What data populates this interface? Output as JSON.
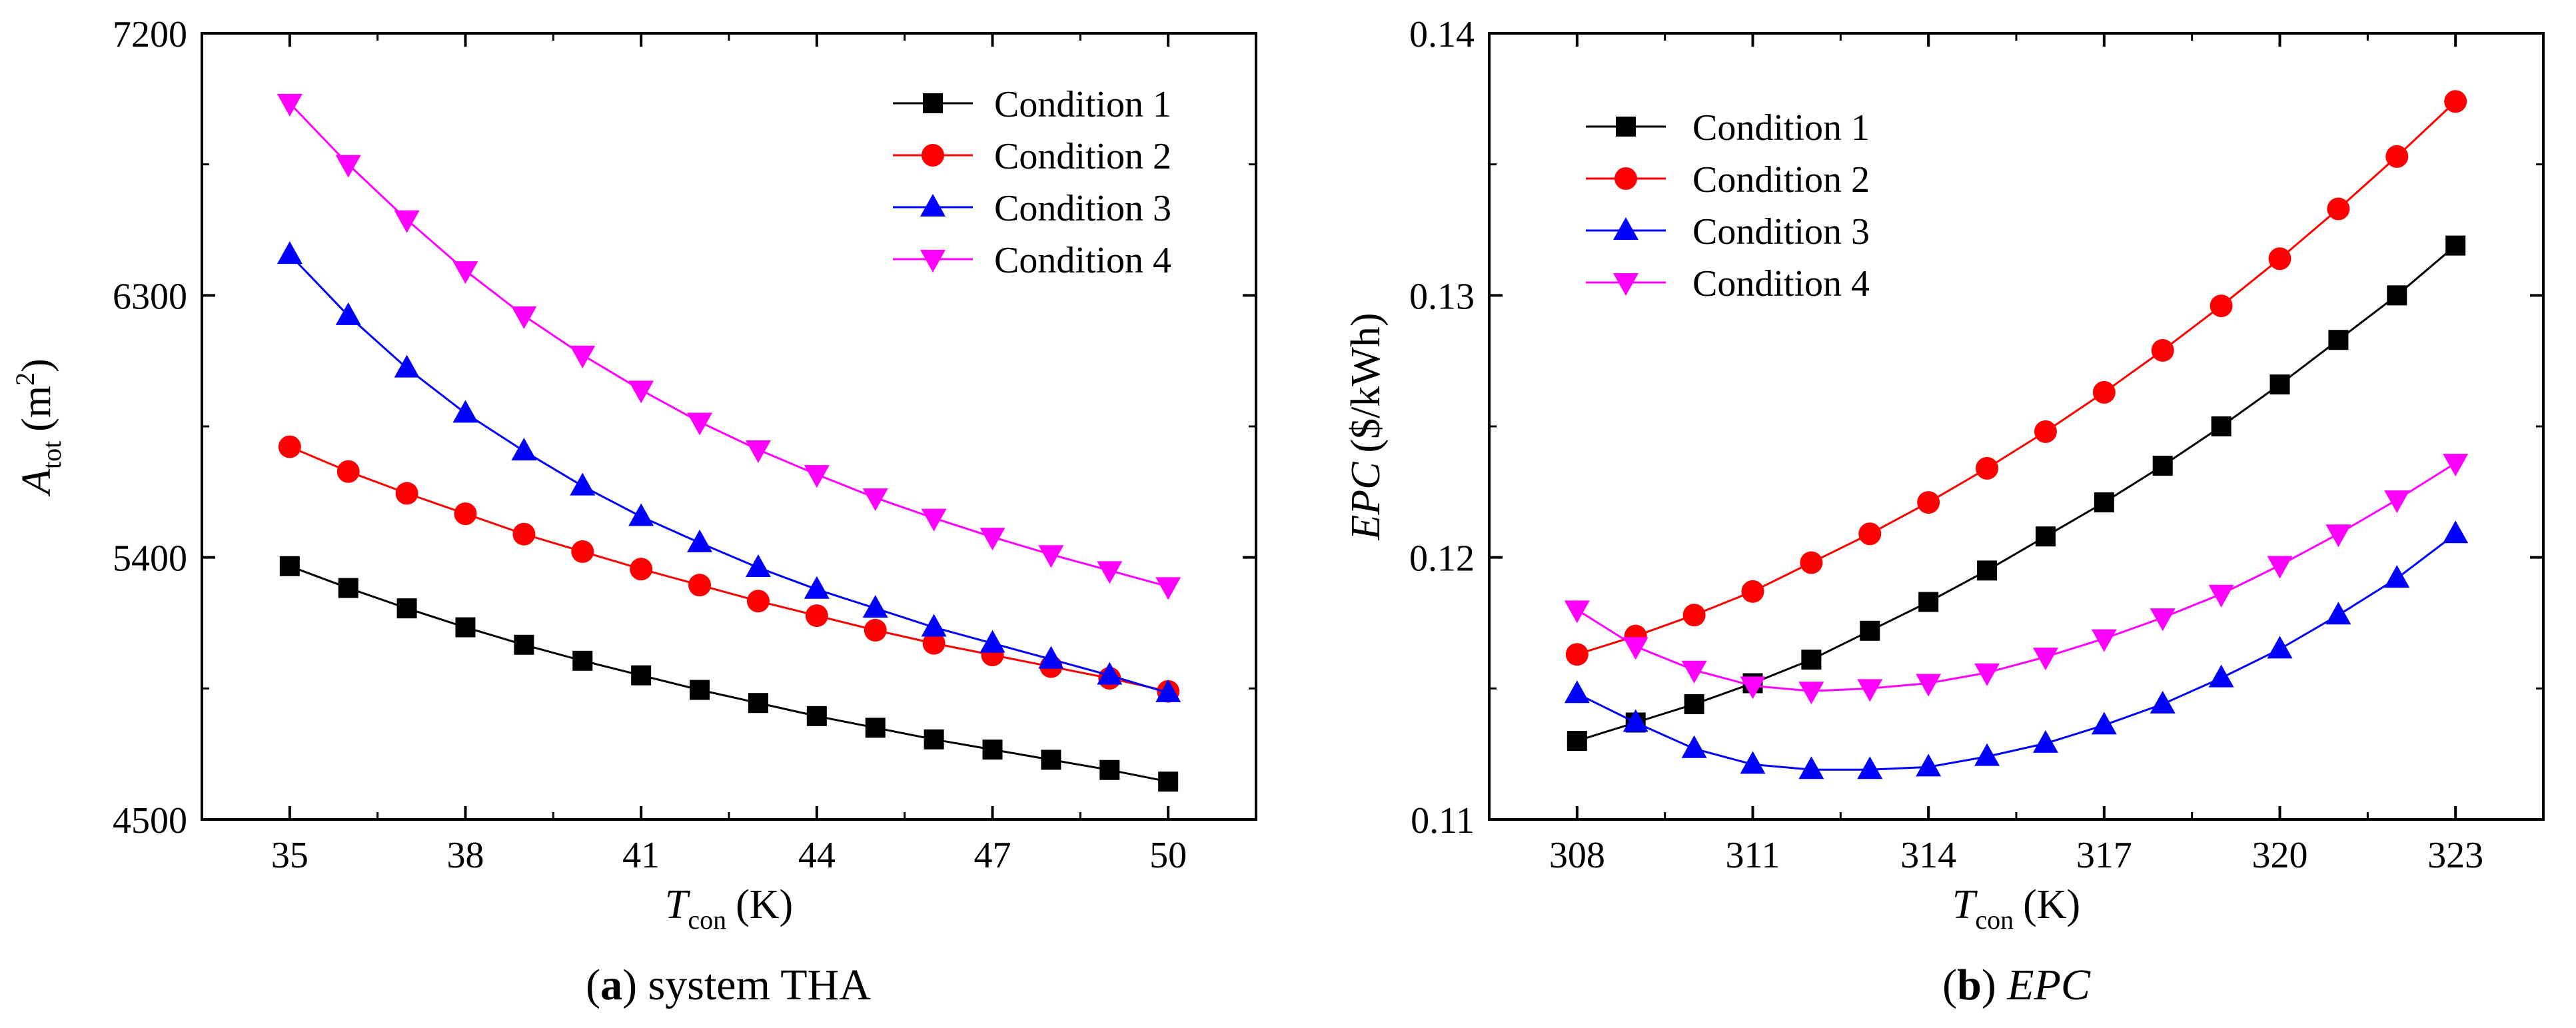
{
  "chart_data": [
    {
      "type": "line",
      "caption": {
        "letter": "a",
        "text": "system THA"
      },
      "title": "",
      "xlabel": {
        "main": "T",
        "sub": "con",
        "unit": "(K)"
      },
      "ylabel": {
        "main": "A",
        "sub": "tot",
        "unit": "(m",
        "sup": "2",
        "unit_end": ")"
      },
      "xlim": [
        33.5,
        51.5
      ],
      "ylim": [
        4500,
        7200
      ],
      "xticks": [
        35,
        38,
        41,
        44,
        47,
        50
      ],
      "yticks": [
        4500,
        5400,
        6300,
        7200
      ],
      "x": [
        35,
        36,
        37,
        38,
        39,
        40,
        41,
        42,
        43,
        44,
        45,
        46,
        47,
        48,
        49,
        50
      ],
      "legend_position": "top-right",
      "series": [
        {
          "name": "Condition 1",
          "color": "#000000",
          "marker": "square",
          "values": [
            5370,
            5295,
            5225,
            5160,
            5100,
            5045,
            4995,
            4945,
            4900,
            4855,
            4815,
            4775,
            4740,
            4705,
            4670,
            4630
          ]
        },
        {
          "name": "Condition 2",
          "color": "#ff0000",
          "marker": "circle",
          "values": [
            5780,
            5695,
            5620,
            5550,
            5480,
            5420,
            5360,
            5305,
            5250,
            5200,
            5150,
            5105,
            5065,
            5025,
            4985,
            4940
          ]
        },
        {
          "name": "Condition 3",
          "color": "#0000ff",
          "marker": "triangle-up",
          "values": [
            6440,
            6230,
            6050,
            5895,
            5765,
            5645,
            5540,
            5450,
            5365,
            5290,
            5225,
            5160,
            5105,
            5050,
            4995,
            4935
          ]
        },
        {
          "name": "Condition 4",
          "color": "#ff00ff",
          "marker": "triangle-down",
          "values": [
            6960,
            6750,
            6560,
            6385,
            6230,
            6095,
            5975,
            5865,
            5770,
            5685,
            5605,
            5535,
            5470,
            5410,
            5355,
            5300
          ]
        }
      ]
    },
    {
      "type": "line",
      "caption": {
        "letter": "b",
        "text": "EPC"
      },
      "title": "",
      "xlabel": {
        "main": "T",
        "sub": "con",
        "unit": "(K)"
      },
      "ylabel": {
        "main": "EPC",
        "sub": "",
        "unit": "($/kWh)",
        "sup": "",
        "unit_end": ""
      },
      "xlim": [
        306.5,
        324.5
      ],
      "ylim": [
        0.11,
        0.14
      ],
      "xticks": [
        308,
        311,
        314,
        317,
        320,
        323
      ],
      "yticks": [
        0.11,
        0.12,
        0.13,
        0.14
      ],
      "x": [
        308,
        309,
        310,
        311,
        312,
        313,
        314,
        315,
        316,
        317,
        318,
        319,
        320,
        321,
        322,
        323
      ],
      "legend_position": "top-left",
      "series": [
        {
          "name": "Condition 1",
          "color": "#000000",
          "marker": "square",
          "values": [
            0.113,
            0.1137,
            0.1144,
            0.1152,
            0.1161,
            0.1172,
            0.1183,
            0.1195,
            0.1208,
            0.1221,
            0.1235,
            0.125,
            0.1266,
            0.1283,
            0.13,
            0.1319
          ]
        },
        {
          "name": "Condition 2",
          "color": "#ff0000",
          "marker": "circle",
          "values": [
            0.1163,
            0.117,
            0.1178,
            0.1187,
            0.1198,
            0.1209,
            0.1221,
            0.1234,
            0.1248,
            0.1263,
            0.1279,
            0.1296,
            0.1314,
            0.1333,
            0.1353,
            0.1374
          ]
        },
        {
          "name": "Condition 3",
          "color": "#0000ff",
          "marker": "triangle-up",
          "values": [
            0.1148,
            0.1137,
            0.1127,
            0.1121,
            0.1119,
            0.1119,
            0.112,
            0.1124,
            0.1129,
            0.1136,
            0.1144,
            0.1154,
            0.1165,
            0.1178,
            0.1192,
            0.1209
          ]
        },
        {
          "name": "Condition 4",
          "color": "#ff00ff",
          "marker": "triangle-down",
          "values": [
            0.118,
            0.1166,
            0.1157,
            0.1151,
            0.1149,
            0.115,
            0.1152,
            0.1156,
            0.1162,
            0.1169,
            0.1177,
            0.1186,
            0.1197,
            0.1209,
            0.1222,
            0.1236
          ]
        }
      ]
    }
  ]
}
